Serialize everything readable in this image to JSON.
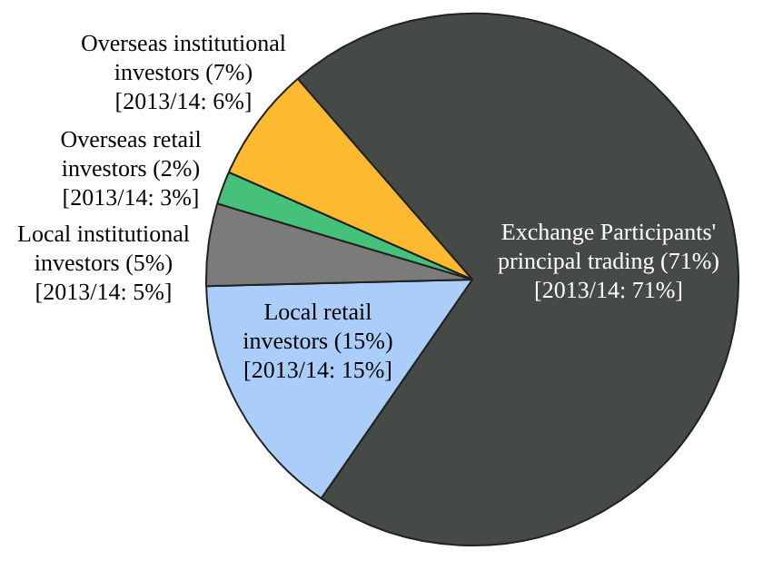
{
  "chart_data": {
    "type": "pie",
    "categories": [
      "Exchange Participants' principal trading",
      "Local retail investors",
      "Local institutional investors",
      "Overseas retail investors",
      "Overseas institutional investors"
    ],
    "values": [
      71,
      15,
      5,
      2,
      7
    ],
    "value_labels": [
      "(71%)",
      "(15%)",
      "(5%)",
      "(2%)",
      "(7%)"
    ],
    "colors": [
      "#454a46",
      "#aacdfa",
      "#7b7b7b",
      "#46c17a",
      "#fdb92f"
    ],
    "annotations": [
      "[2013/14: 71%]",
      "[2013/14: 15%]",
      "[2013/14: 5%]",
      "[2013/14: 3%]",
      "[2013/14: 6%]"
    ],
    "legend": false
  }
}
